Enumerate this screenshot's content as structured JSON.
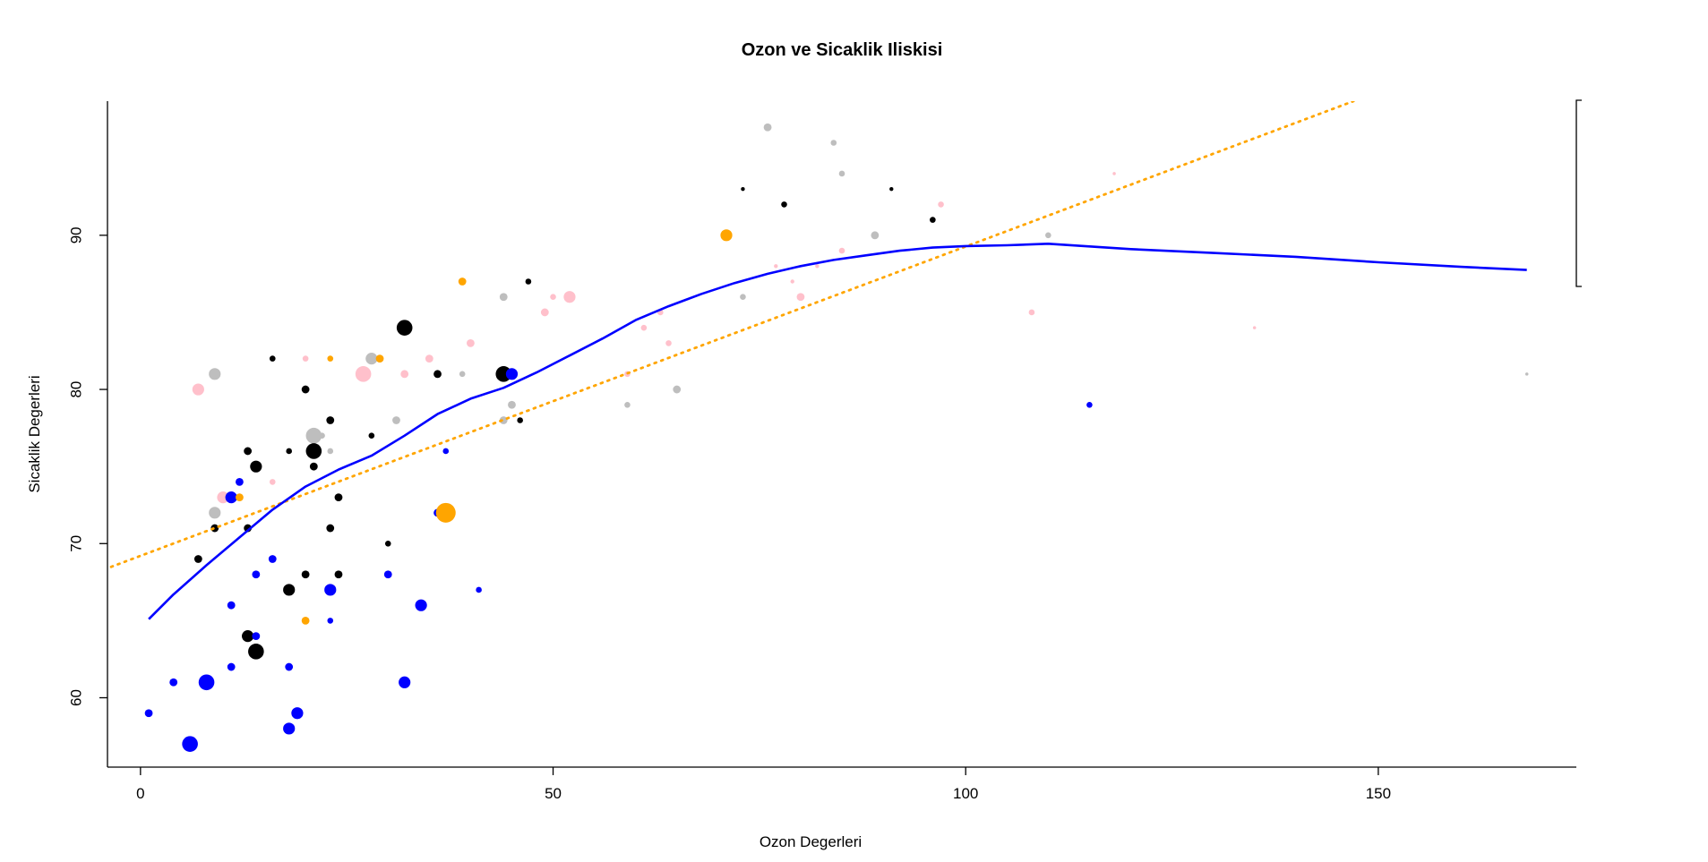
{
  "chart_data": {
    "type": "scatter",
    "title": "Ozon ve Sicaklik Iliskisi",
    "xlabel": "Ozon Degerleri",
    "ylabel": "Sicaklik Degerleri",
    "xlim": [
      -4,
      174
    ],
    "ylim": [
      55.5,
      98.7
    ],
    "x_ticks": [
      0,
      50,
      100,
      150
    ],
    "y_ticks": [
      60,
      70,
      80,
      90
    ],
    "grid": false,
    "legend": "right-clipped",
    "colors": {
      "blue": "#0000ff",
      "black": "#000000",
      "pink": "#ffc0cb",
      "gray": "#bebebe",
      "orange": "#ffa500",
      "smooth_line": "#0000ff",
      "fit_line": "#ffa500"
    },
    "points": [
      {
        "x": 1,
        "y": 59,
        "color": "blue",
        "size": 2
      },
      {
        "x": 4,
        "y": 61,
        "color": "blue",
        "size": 2
      },
      {
        "x": 6,
        "y": 57,
        "color": "blue",
        "size": 4
      },
      {
        "x": 7,
        "y": 69,
        "color": "black",
        "size": 2
      },
      {
        "x": 7,
        "y": 80,
        "color": "pink",
        "size": 3
      },
      {
        "x": 8,
        "y": 61,
        "color": "blue",
        "size": 4
      },
      {
        "x": 9,
        "y": 81,
        "color": "gray",
        "size": 3
      },
      {
        "x": 9,
        "y": 72,
        "color": "gray",
        "size": 3
      },
      {
        "x": 9,
        "y": 71,
        "color": "black",
        "size": 2
      },
      {
        "x": 10,
        "y": 73,
        "color": "pink",
        "size": 3
      },
      {
        "x": 11,
        "y": 73,
        "color": "blue",
        "size": 3
      },
      {
        "x": 11,
        "y": 66,
        "color": "blue",
        "size": 2
      },
      {
        "x": 11,
        "y": 62,
        "color": "blue",
        "size": 2
      },
      {
        "x": 12,
        "y": 74,
        "color": "blue",
        "size": 2
      },
      {
        "x": 12,
        "y": 73,
        "color": "orange",
        "size": 2
      },
      {
        "x": 13,
        "y": 76,
        "color": "black",
        "size": 2
      },
      {
        "x": 13,
        "y": 71,
        "color": "black",
        "size": 2
      },
      {
        "x": 13,
        "y": 64,
        "color": "black",
        "size": 3
      },
      {
        "x": 14,
        "y": 75,
        "color": "black",
        "size": 3
      },
      {
        "x": 14,
        "y": 68,
        "color": "blue",
        "size": 2
      },
      {
        "x": 14,
        "y": 64,
        "color": "blue",
        "size": 2
      },
      {
        "x": 14,
        "y": 63,
        "color": "black",
        "size": 4
      },
      {
        "x": 16,
        "y": 82,
        "color": "black",
        "size": 1.5
      },
      {
        "x": 16,
        "y": 74,
        "color": "pink",
        "size": 1.5
      },
      {
        "x": 16,
        "y": 69,
        "color": "blue",
        "size": 2
      },
      {
        "x": 18,
        "y": 76,
        "color": "black",
        "size": 1.5
      },
      {
        "x": 18,
        "y": 67,
        "color": "black",
        "size": 3
      },
      {
        "x": 18,
        "y": 62,
        "color": "blue",
        "size": 2
      },
      {
        "x": 18,
        "y": 58,
        "color": "blue",
        "size": 3
      },
      {
        "x": 19,
        "y": 59,
        "color": "blue",
        "size": 3
      },
      {
        "x": 20,
        "y": 82,
        "color": "pink",
        "size": 1.5
      },
      {
        "x": 20,
        "y": 80,
        "color": "black",
        "size": 2
      },
      {
        "x": 20,
        "y": 68,
        "color": "black",
        "size": 2
      },
      {
        "x": 20,
        "y": 65,
        "color": "orange",
        "size": 2
      },
      {
        "x": 21,
        "y": 77,
        "color": "gray",
        "size": 4
      },
      {
        "x": 21,
        "y": 76,
        "color": "black",
        "size": 4
      },
      {
        "x": 21,
        "y": 75,
        "color": "black",
        "size": 2
      },
      {
        "x": 22,
        "y": 77,
        "color": "gray",
        "size": 1.5
      },
      {
        "x": 23,
        "y": 82,
        "color": "orange",
        "size": 1.5
      },
      {
        "x": 23,
        "y": 78,
        "color": "black",
        "size": 2
      },
      {
        "x": 23,
        "y": 76,
        "color": "gray",
        "size": 1.5
      },
      {
        "x": 23,
        "y": 71,
        "color": "black",
        "size": 2
      },
      {
        "x": 23,
        "y": 67,
        "color": "blue",
        "size": 3
      },
      {
        "x": 23,
        "y": 65,
        "color": "blue",
        "size": 1.5
      },
      {
        "x": 24,
        "y": 73,
        "color": "black",
        "size": 2
      },
      {
        "x": 24,
        "y": 68,
        "color": "black",
        "size": 2
      },
      {
        "x": 27,
        "y": 81,
        "color": "pink",
        "size": 4
      },
      {
        "x": 28,
        "y": 82,
        "color": "gray",
        "size": 3
      },
      {
        "x": 28,
        "y": 77,
        "color": "black",
        "size": 1.5
      },
      {
        "x": 29,
        "y": 82,
        "color": "orange",
        "size": 2
      },
      {
        "x": 30,
        "y": 70,
        "color": "black",
        "size": 1.5
      },
      {
        "x": 30,
        "y": 68,
        "color": "blue",
        "size": 2
      },
      {
        "x": 31,
        "y": 78,
        "color": "gray",
        "size": 2
      },
      {
        "x": 32,
        "y": 84,
        "color": "black",
        "size": 4
      },
      {
        "x": 32,
        "y": 81,
        "color": "pink",
        "size": 2
      },
      {
        "x": 32,
        "y": 61,
        "color": "blue",
        "size": 3
      },
      {
        "x": 34,
        "y": 66,
        "color": "blue",
        "size": 3
      },
      {
        "x": 35,
        "y": 82,
        "color": "pink",
        "size": 2
      },
      {
        "x": 36,
        "y": 81,
        "color": "black",
        "size": 2
      },
      {
        "x": 36,
        "y": 72,
        "color": "blue",
        "size": 2
      },
      {
        "x": 37,
        "y": 76,
        "color": "blue",
        "size": 1.5
      },
      {
        "x": 37,
        "y": 72,
        "color": "orange",
        "size": 5
      },
      {
        "x": 39,
        "y": 87,
        "color": "orange",
        "size": 2
      },
      {
        "x": 39,
        "y": 81,
        "color": "gray",
        "size": 1.5
      },
      {
        "x": 40,
        "y": 83,
        "color": "pink",
        "size": 2
      },
      {
        "x": 41,
        "y": 67,
        "color": "blue",
        "size": 1.5
      },
      {
        "x": 44,
        "y": 86,
        "color": "gray",
        "size": 2
      },
      {
        "x": 44,
        "y": 81,
        "color": "black",
        "size": 4
      },
      {
        "x": 44,
        "y": 78,
        "color": "gray",
        "size": 2
      },
      {
        "x": 45,
        "y": 81,
        "color": "blue",
        "size": 3
      },
      {
        "x": 45,
        "y": 79,
        "color": "gray",
        "size": 2
      },
      {
        "x": 46,
        "y": 78,
        "color": "black",
        "size": 1.5
      },
      {
        "x": 47,
        "y": 87,
        "color": "black",
        "size": 1.5
      },
      {
        "x": 49,
        "y": 85,
        "color": "pink",
        "size": 2
      },
      {
        "x": 50,
        "y": 86,
        "color": "pink",
        "size": 1.5
      },
      {
        "x": 52,
        "y": 86,
        "color": "pink",
        "size": 3
      },
      {
        "x": 59,
        "y": 81,
        "color": "pink",
        "size": 1.5
      },
      {
        "x": 59,
        "y": 79,
        "color": "gray",
        "size": 1.5
      },
      {
        "x": 61,
        "y": 84,
        "color": "pink",
        "size": 1.5
      },
      {
        "x": 63,
        "y": 85,
        "color": "pink",
        "size": 1.5
      },
      {
        "x": 64,
        "y": 83,
        "color": "pink",
        "size": 1.5
      },
      {
        "x": 65,
        "y": 80,
        "color": "gray",
        "size": 2
      },
      {
        "x": 71,
        "y": 90,
        "color": "orange",
        "size": 3
      },
      {
        "x": 73,
        "y": 93,
        "color": "black",
        "size": 1
      },
      {
        "x": 73,
        "y": 86,
        "color": "gray",
        "size": 1.5
      },
      {
        "x": 76,
        "y": 97,
        "color": "gray",
        "size": 2
      },
      {
        "x": 77,
        "y": 88,
        "color": "pink",
        "size": 1
      },
      {
        "x": 78,
        "y": 92,
        "color": "black",
        "size": 1.5
      },
      {
        "x": 79,
        "y": 87,
        "color": "pink",
        "size": 1
      },
      {
        "x": 80,
        "y": 86,
        "color": "pink",
        "size": 2
      },
      {
        "x": 82,
        "y": 88,
        "color": "pink",
        "size": 1
      },
      {
        "x": 84,
        "y": 96,
        "color": "gray",
        "size": 1.5
      },
      {
        "x": 85,
        "y": 94,
        "color": "gray",
        "size": 1.5
      },
      {
        "x": 85,
        "y": 89,
        "color": "pink",
        "size": 1.5
      },
      {
        "x": 89,
        "y": 90,
        "color": "gray",
        "size": 2
      },
      {
        "x": 91,
        "y": 93,
        "color": "black",
        "size": 1
      },
      {
        "x": 96,
        "y": 91,
        "color": "black",
        "size": 1.5
      },
      {
        "x": 97,
        "y": 92,
        "color": "pink",
        "size": 1.5
      },
      {
        "x": 108,
        "y": 85,
        "color": "pink",
        "size": 1.5
      },
      {
        "x": 110,
        "y": 90,
        "color": "gray",
        "size": 1.5
      },
      {
        "x": 115,
        "y": 79,
        "color": "blue",
        "size": 1.5
      },
      {
        "x": 118,
        "y": 94,
        "color": "pink",
        "size": 0.8
      },
      {
        "x": 135,
        "y": 84,
        "color": "pink",
        "size": 0.8
      },
      {
        "x": 168,
        "y": 81,
        "color": "gray",
        "size": 0.8
      }
    ],
    "smooth_curve": {
      "name": "lowess",
      "x": [
        1,
        4,
        8,
        12,
        16,
        20,
        24,
        28,
        32,
        36,
        40,
        44,
        48,
        52,
        56,
        60,
        64,
        68,
        72,
        76,
        80,
        84,
        88,
        92,
        96,
        100,
        105,
        110,
        120,
        130,
        140,
        150,
        160,
        168
      ],
      "y": [
        65.1,
        66.7,
        68.6,
        70.4,
        72.2,
        73.7,
        74.8,
        75.7,
        77.0,
        78.4,
        79.4,
        80.1,
        81.1,
        82.2,
        83.3,
        84.5,
        85.4,
        86.2,
        86.9,
        87.5,
        88.0,
        88.4,
        88.7,
        89.0,
        89.2,
        89.3,
        89.35,
        89.45,
        89.1,
        88.85,
        88.6,
        88.25,
        87.95,
        87.75
      ]
    },
    "fit_line": {
      "name": "linear",
      "x": [
        -6,
        147
      ],
      "y": [
        68.0,
        98.7
      ]
    }
  }
}
